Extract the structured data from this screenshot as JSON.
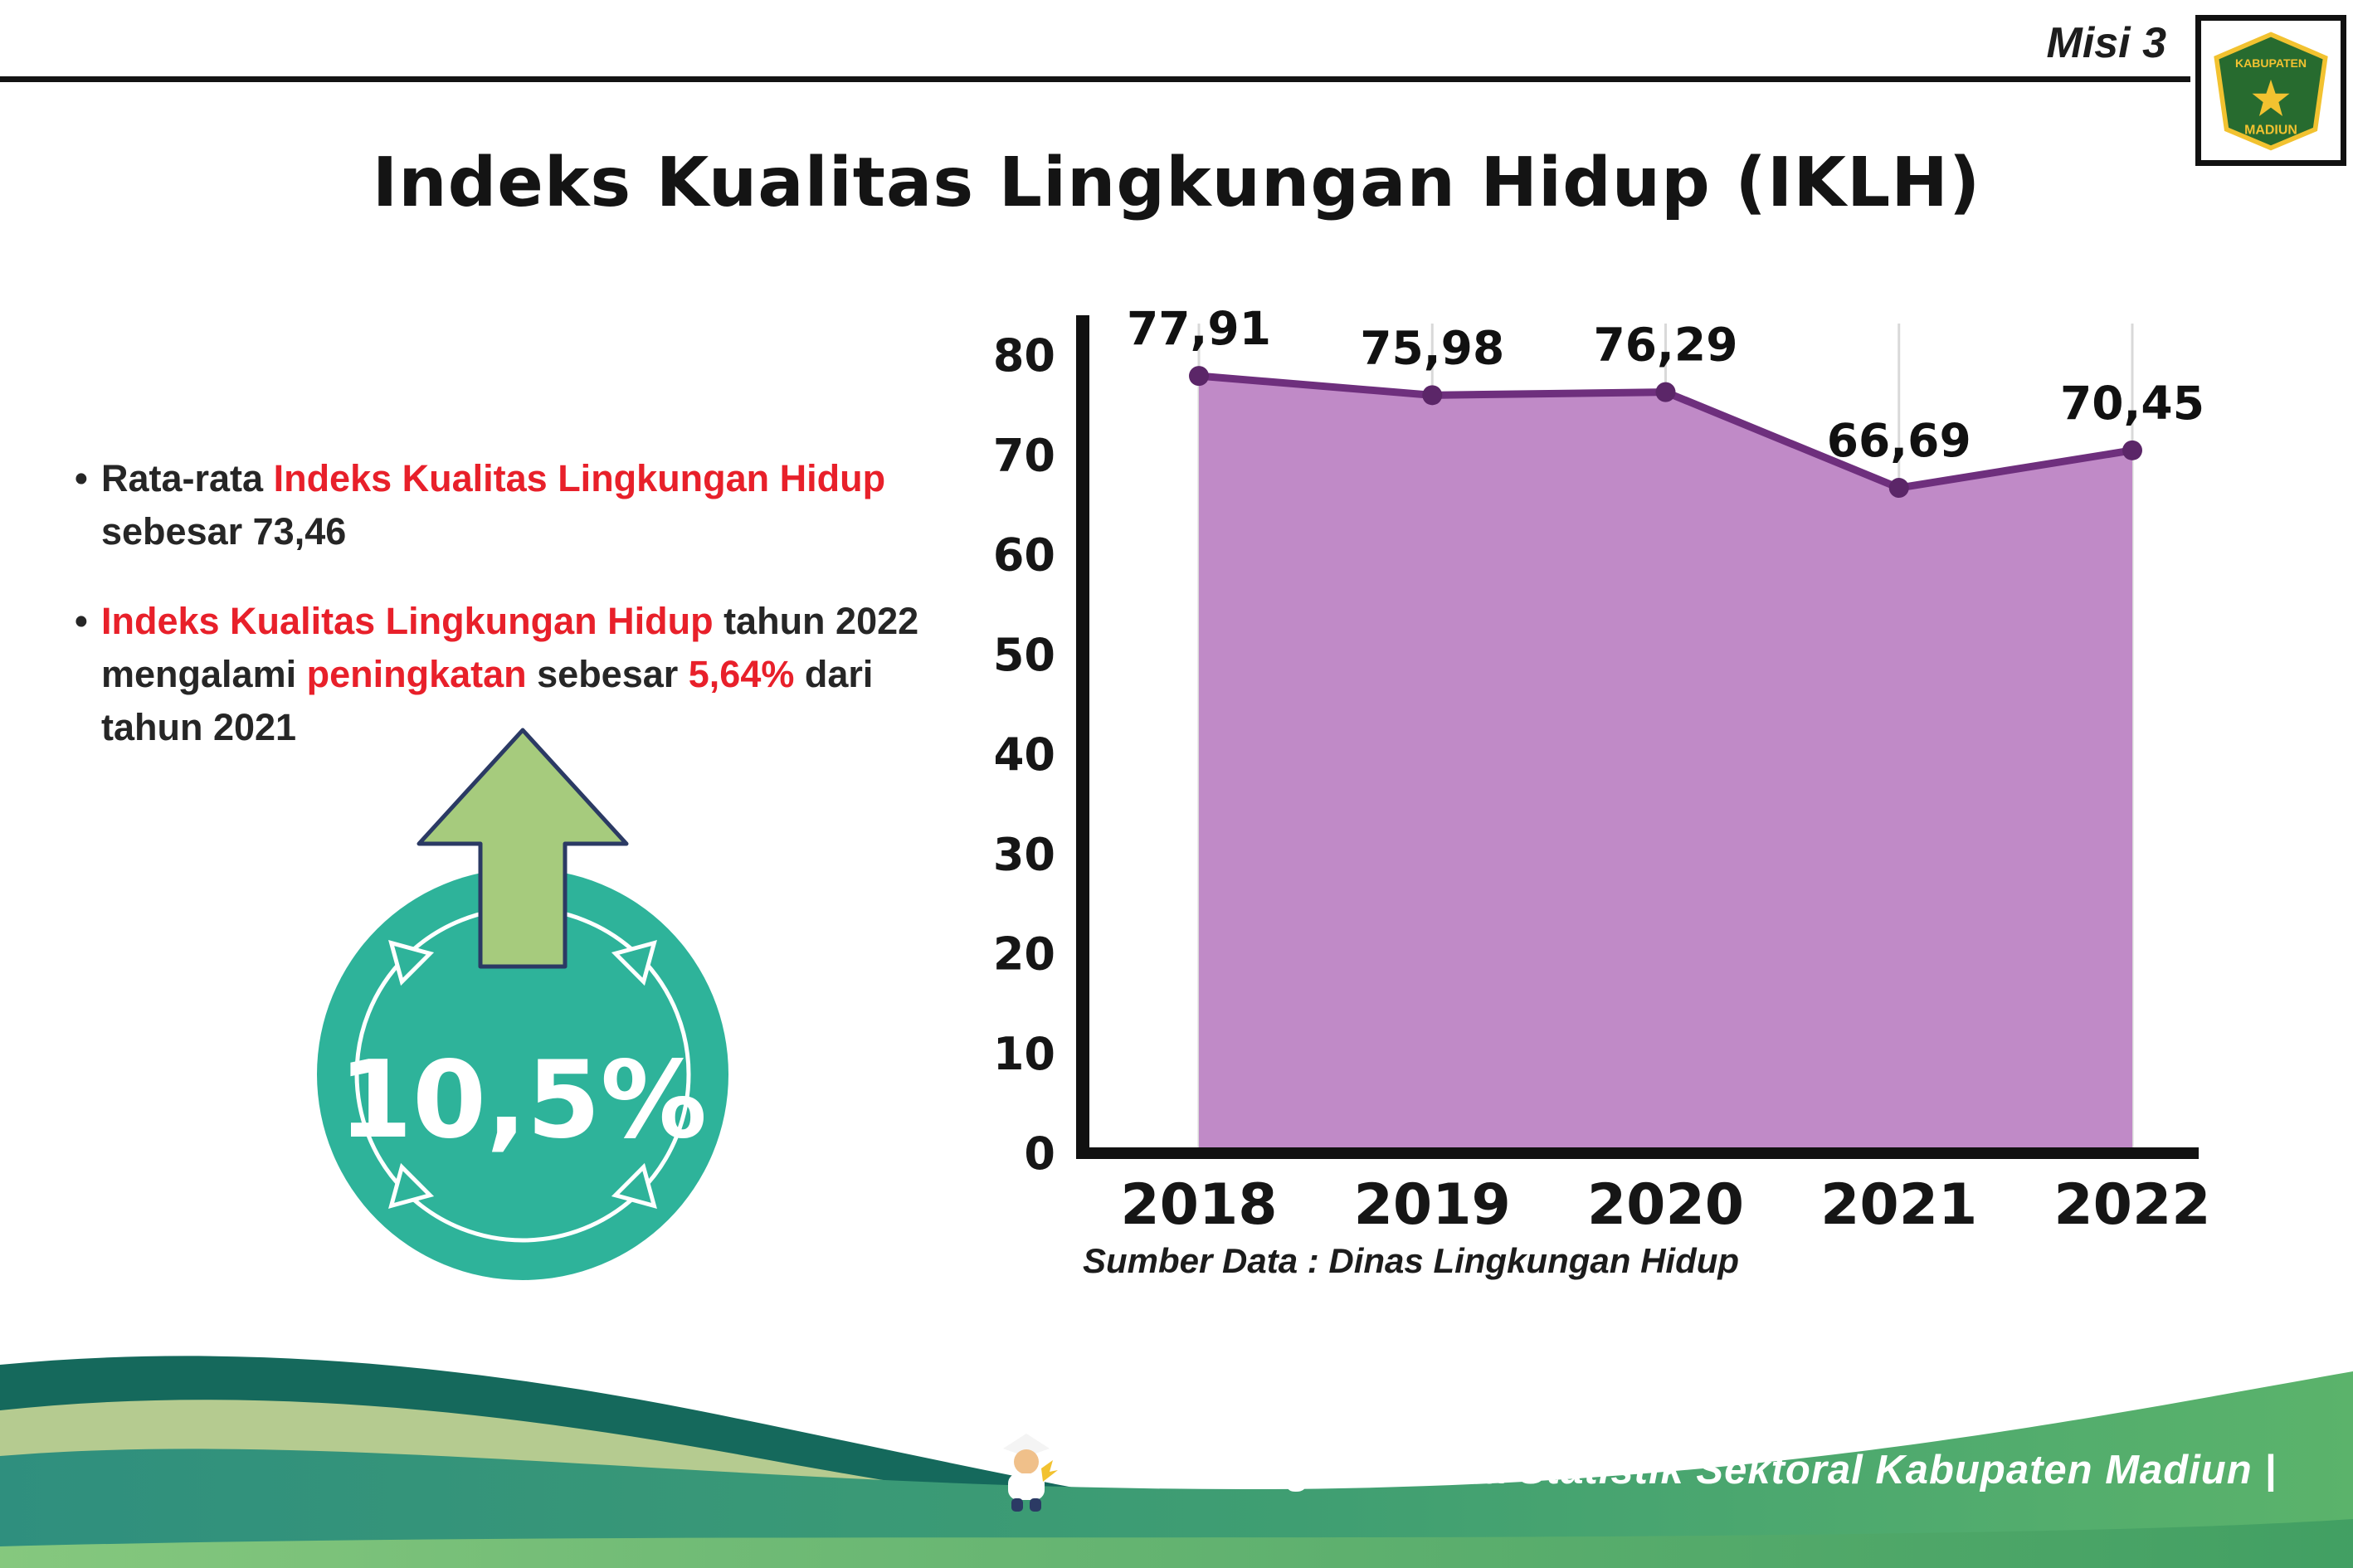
{
  "header": {
    "misi_label": "Misi 3",
    "title": "Indeks Kualitas Lingkungan Hidup (IKLH)",
    "logo": {
      "line1": "KABUPATEN",
      "line2": "MADIUN"
    }
  },
  "bullets": [
    {
      "segments": [
        {
          "text": "Rata-rata ",
          "red": false
        },
        {
          "text": "Indeks Kualitas Lingkungan Hidup",
          "red": true
        },
        {
          "text": " sebesar 73,46",
          "red": false
        }
      ]
    },
    {
      "segments": [
        {
          "text": "Indeks Kualitas Lingkungan Hidup",
          "red": true
        },
        {
          "text": " tahun 2022 mengalami ",
          "red": false
        },
        {
          "text": "peningkatan",
          "red": true
        },
        {
          "text": " sebesar ",
          "red": false
        },
        {
          "text": "5,64%",
          "red": true
        },
        {
          "text": " dari tahun 2021",
          "red": false
        }
      ]
    }
  ],
  "badge": {
    "value": "10,5%",
    "circle_color": "#2eb39a",
    "arrow_color": "#a6cb7d",
    "arrow_outline": "#2b3a64"
  },
  "chart_data": {
    "type": "area",
    "categories": [
      "2018",
      "2019",
      "2020",
      "2021",
      "2022"
    ],
    "values": [
      77.91,
      75.98,
      76.29,
      66.69,
      70.45
    ],
    "value_labels": [
      "77,91",
      "75,98",
      "76,29",
      "66,69",
      "70,45"
    ],
    "title": "",
    "xlabel": "",
    "ylabel": "",
    "ylim": [
      0,
      80
    ],
    "ytick_step": 10,
    "grid": true,
    "legend": false,
    "area_color": "#c08ac7",
    "line_color": "#6e2f7d",
    "point_color": "#5b2668",
    "source": "Sumber Data : Dinas Lingkungan Hidup"
  },
  "footer": {
    "credit": "Media Infografis Data Statistik Sektoral Kabupaten Madiun |"
  },
  "colors": {
    "accent_red": "#e8202a",
    "footer_dark_teal": "#15695c",
    "footer_sage": "#b5cb90",
    "footer_green_left": "#2f8f7e",
    "footer_green_right": "#5bb36b"
  }
}
